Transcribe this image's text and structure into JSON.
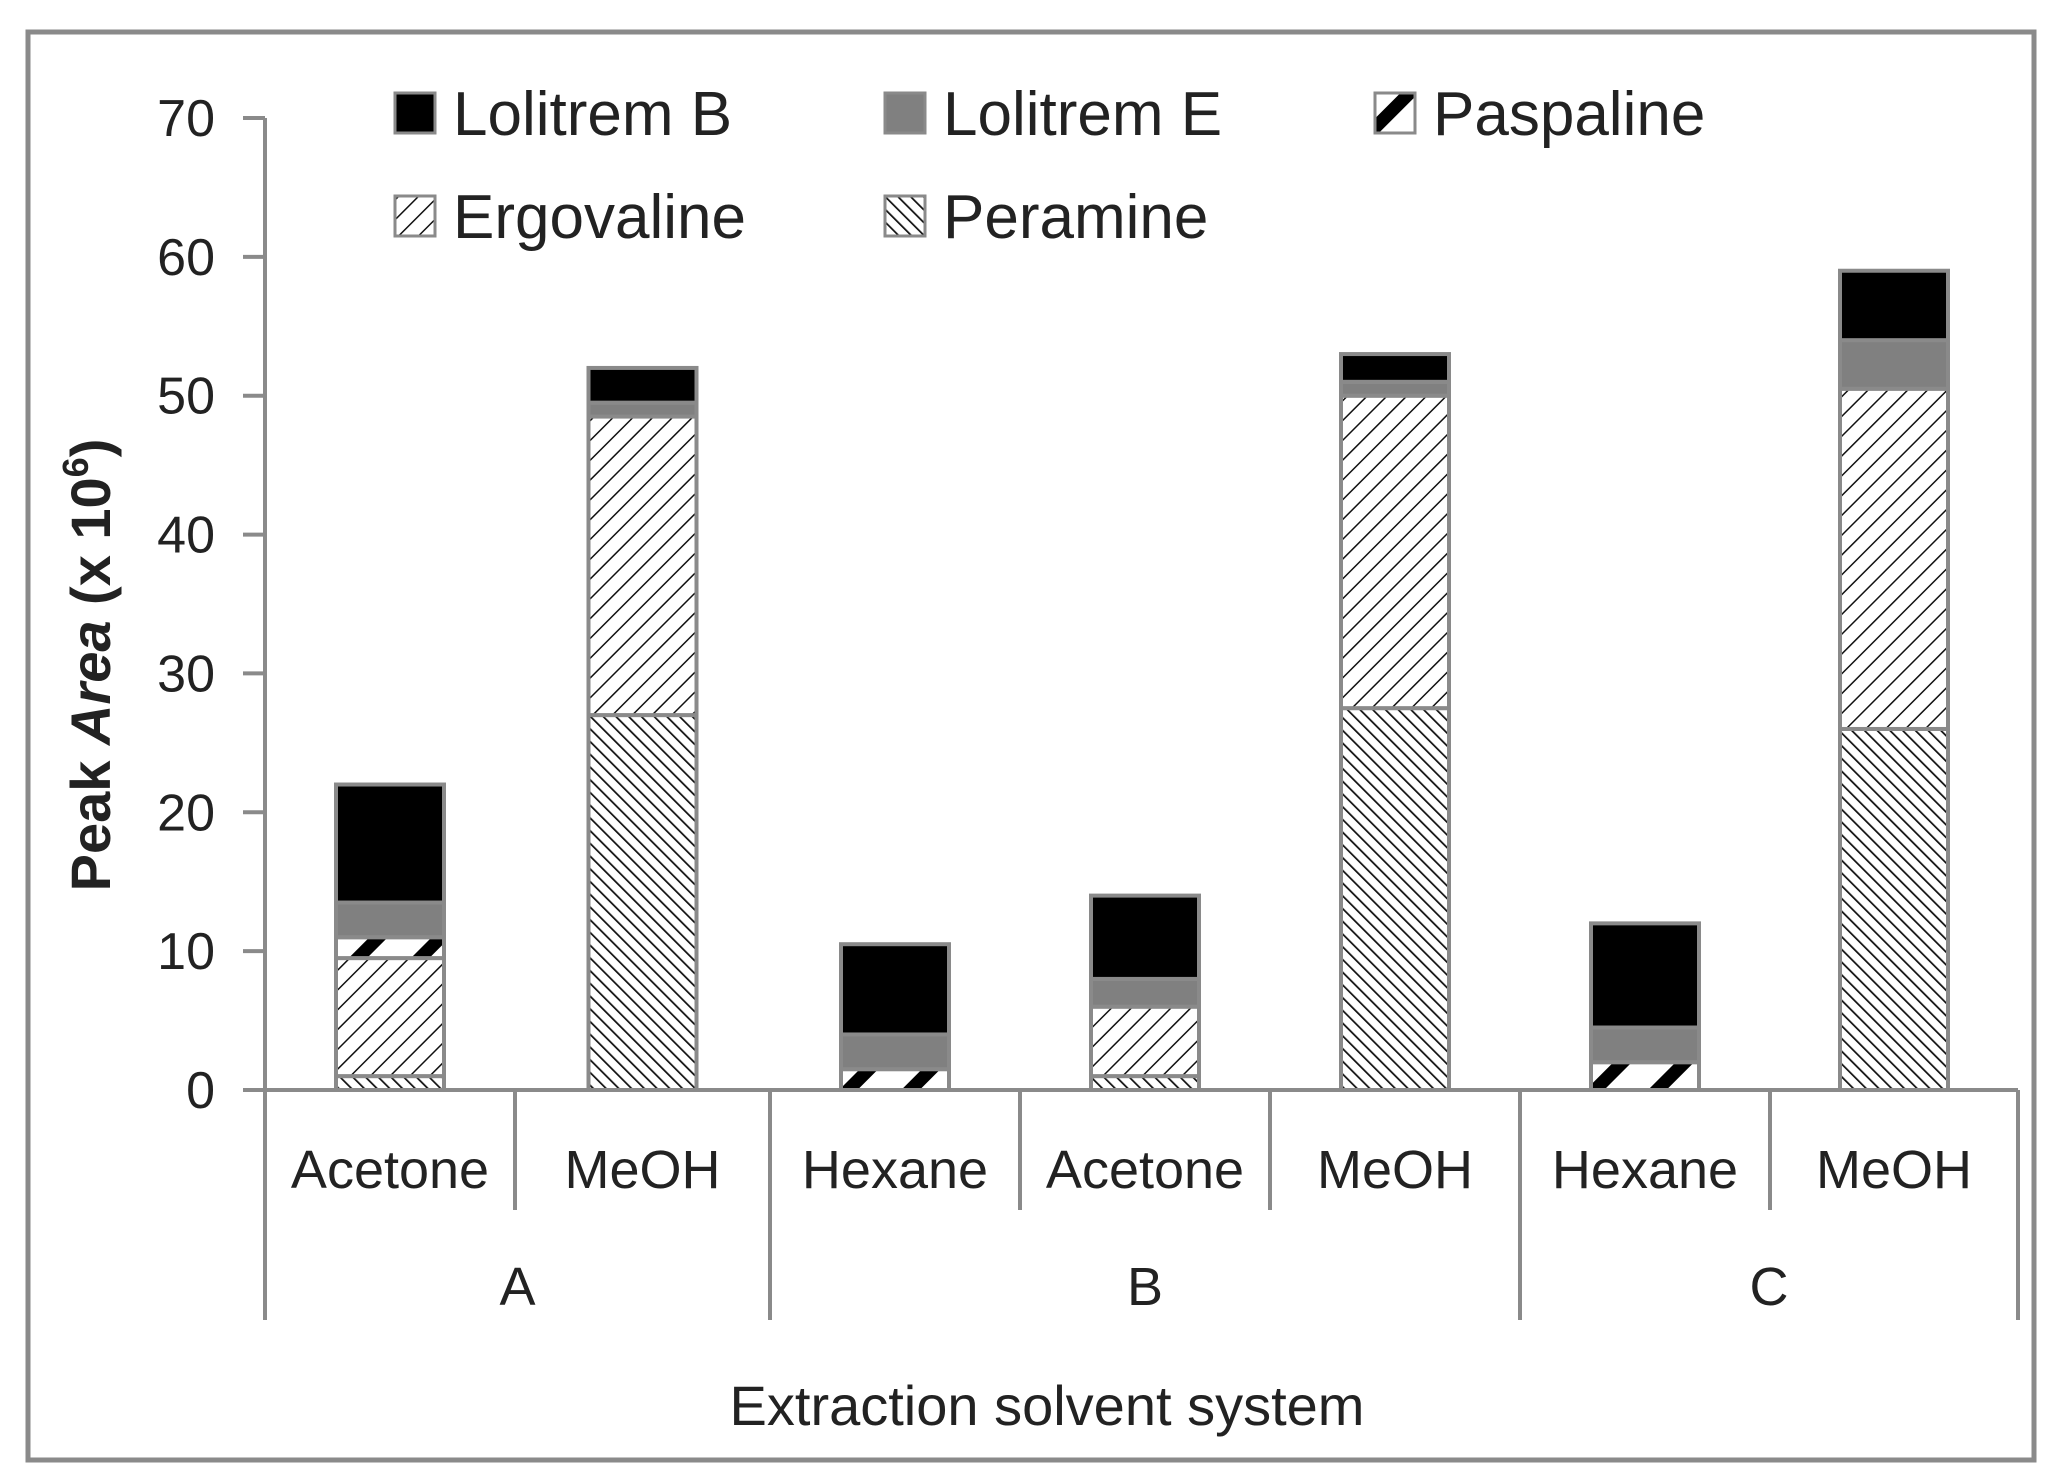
{
  "chart_data": {
    "type": "bar",
    "stacked": true,
    "title": "",
    "xlabel": "Extraction solvent system",
    "ylabel": {
      "main": "Peak ",
      "italic": "Area",
      "rest": " (x 10",
      "sup": "6",
      "close": ")"
    },
    "ylim": [
      0,
      70
    ],
    "yticks": [
      0,
      10,
      20,
      30,
      40,
      50,
      60,
      70
    ],
    "grid": false,
    "legend_position": "top",
    "groups": [
      {
        "label": "A",
        "categories": [
          "Acetone",
          "MeOH"
        ]
      },
      {
        "label": "B",
        "categories": [
          "Hexane",
          "Acetone",
          "MeOH"
        ]
      },
      {
        "label": "C",
        "categories": [
          "Hexane",
          "MeOH"
        ]
      }
    ],
    "categories": [
      "Acetone",
      "MeOH",
      "Hexane",
      "Acetone",
      "MeOH",
      "Hexane",
      "MeOH"
    ],
    "series": [
      {
        "name": "Peramine",
        "pattern": "dense-backslash",
        "values": [
          1.0,
          27.0,
          0.0,
          1.0,
          27.5,
          0.0,
          26.0
        ]
      },
      {
        "name": "Ergovaline",
        "pattern": "slash",
        "values": [
          8.5,
          21.5,
          0.0,
          5.0,
          22.5,
          0.0,
          24.5
        ]
      },
      {
        "name": "Paspaline",
        "pattern": "bold-slash",
        "values": [
          1.5,
          0.0,
          1.5,
          0.0,
          0.0,
          2.0,
          0.0
        ]
      },
      {
        "name": "Lolitrem E",
        "color": "#808080",
        "values": [
          2.5,
          1.0,
          2.5,
          2.0,
          1.0,
          2.5,
          3.5
        ]
      },
      {
        "name": "Lolitrem B",
        "color": "#000000",
        "values": [
          8.5,
          2.5,
          6.5,
          6.0,
          2.0,
          7.5,
          5.0
        ]
      }
    ],
    "legend_order": [
      "Lolitrem B",
      "Lolitrem E",
      "Paspaline",
      "Ergovaline",
      "Peramine"
    ]
  }
}
